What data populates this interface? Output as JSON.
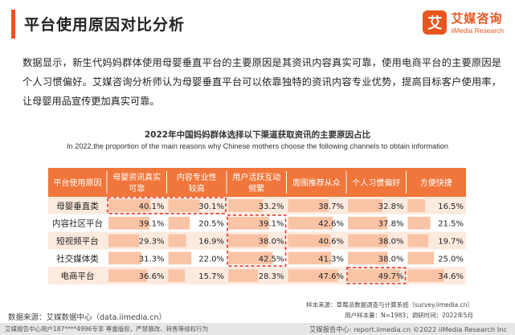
{
  "header": {
    "title": "平台使用原因对比分析",
    "logo_mark": "艾",
    "logo_cn": "艾媒咨询",
    "logo_en": "iiMedia Research"
  },
  "intro": "数据显示，新生代妈妈群体使用母婴垂直平台的主要原因是其资讯内容真实可靠，使用电商平台的主要原因是个人习惯偏好。艾媒咨询分析师认为母婴垂直平台可以依靠独特的资讯内容专业优势，提高目标客户使用率，让母婴用品宣传更加真实可靠。",
  "chart_data": {
    "type": "table",
    "title": "2022年中国妈妈群体选择以下渠道获取资讯的主要原因占比",
    "subtitle": "In 2022,the proportion of the main reasons why Chinese mothers choose the following channels to obtain information",
    "corner_label": "平台使用原因",
    "columns": [
      [
        "母婴资讯真实",
        "可靠"
      ],
      [
        "内容专业性",
        "较高"
      ],
      [
        "用户活跃互动",
        "频繁"
      ],
      [
        "周围推荐从众"
      ],
      [
        "个人习惯偏好"
      ],
      [
        "方便快捷"
      ]
    ],
    "rows": [
      "母婴垂直类",
      "内容社区平台",
      "短视频平台",
      "社交媒体类",
      "电商平台"
    ],
    "values": [
      [
        40.1,
        30.1,
        33.2,
        38.7,
        32.8,
        16.5
      ],
      [
        39.1,
        20.5,
        39.1,
        42.6,
        37.8,
        21.5
      ],
      [
        29.3,
        16.9,
        38.0,
        40.6,
        38.0,
        19.7
      ],
      [
        31.3,
        22.0,
        42.5,
        41.3,
        38.0,
        25.0
      ],
      [
        36.6,
        15.7,
        28.3,
        47.6,
        49.7,
        34.6
      ]
    ],
    "unit": "%",
    "colors": {
      "header": "#f0763b",
      "bar": "#f9c4a5",
      "row_odd": "#fdeadf",
      "row_even": "#ffffff",
      "highlight": "#e73a2a"
    }
  },
  "source": {
    "left": "数据来源：艾媒数据中心（data.iimedia.cn）",
    "right_line1": "样本来源：草莓派数据调查与计算系统（survey.iimedia.cn）",
    "right_line2": "用户样本量：N=1983；调研时间：2022年5月"
  },
  "footer": {
    "left": "艾媒报告中心用户187****4996专享 尊重版权，严禁篡改、转售等侵权行为",
    "right": "艾媒报告中心: report.iimedia.cn ©2022  iiMedia Research  Inc"
  }
}
